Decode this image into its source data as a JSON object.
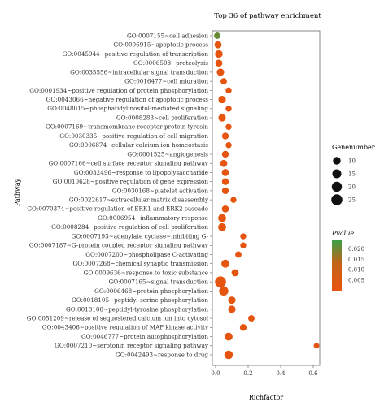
{
  "chart_data": {
    "type": "scatter",
    "title": "Top 36 of pathway enrichment",
    "xlabel": "Richfactor",
    "ylabel": "Pathway",
    "xlim": [
      -0.02,
      0.64
    ],
    "xticks": [
      0.0,
      0.2,
      0.4,
      0.6
    ],
    "xtick_labels": [
      "0.0",
      "0.2",
      "0.4",
      "0.6"
    ],
    "categories": [
      "GO:0007155~cell adhesion",
      "GO:0006915~apoptotic process",
      "GO:0045944~positive regulation of transcription",
      "GO:0006508~proteolysis",
      "GO:0035556~intracellular signal transduction",
      "GO:0016477~cell migration",
      "GO:0001934~positive regulation of protein phosphorylation",
      "GO:0043066~negative regulation of apoptotic process",
      "GO:0048015~phosphatidylinositol-mediated signaling",
      "GO:0008283~cell proliferation",
      "GO:0007169~transmembrane receptor protein tyrosin",
      "GO:0030335~positive regulation of cell migration",
      "GO:0006874~cellular calcium ion homeostasis",
      "GO:0001525~angiogenesis",
      "GO:0007166~cell surface receptor signaling pathway",
      "GO:0032496~response to lipopolysaccharide",
      "GO:0010628~positive regulation of gene expression",
      "GO:0030168~platelet activation",
      "GO:0022617~extracellular matrix disassembly",
      "GO:0070374~positive regulation of ERK1 and ERK2 cascade",
      "GO:0006954~inflammatory response",
      "GO:0008284~positive regulation of cell proliferation",
      "GO:0007193~adenylate cyclase~inhibiting G-",
      "GO:0007187~G-protein coupled receptor signaling pathway",
      "GO:0007200~phospholipase C-activating",
      "GO:0007268~chemical synaptic transmission",
      "GO:0009636~response to toxic substance",
      "GO:0007165~signal transduction",
      "GO:0006468~protein phosphorylation",
      "GO:0018105~peptidyl-serine phosphorylation",
      "GO:0018108~peptidyl-tyrosine phosphorylation",
      "GO:0051209~release of sequestered calcium ion into cytosol",
      "GO:0043406~positive regulation of MAP kinase activity",
      "GO:0046777~protein autophosphorylation",
      "GO:0007210~serotonin receptor signaling pathway",
      "GO:0042493~response to drug"
    ],
    "series": [
      {
        "x": [
          0.01,
          0.015,
          0.02,
          0.02,
          0.03,
          0.05,
          0.08,
          0.04,
          0.08,
          0.04,
          0.08,
          0.06,
          0.08,
          0.06,
          0.05,
          0.06,
          0.06,
          0.06,
          0.11,
          0.06,
          0.04,
          0.04,
          0.17,
          0.17,
          0.14,
          0.06,
          0.12,
          0.03,
          0.05,
          0.1,
          0.1,
          0.22,
          0.17,
          0.08,
          0.62,
          0.08
        ],
        "size": [
          6,
          8,
          10,
          8,
          9,
          6,
          5,
          9,
          5,
          9,
          5,
          7,
          5,
          7,
          8,
          8,
          7,
          7,
          5,
          8,
          11,
          11,
          5,
          5,
          6,
          11,
          8,
          25,
          16,
          9,
          9,
          6,
          7,
          11,
          4,
          13
        ],
        "pvalue": [
          0.02,
          0.001,
          0.001,
          0.001,
          0.001,
          0.001,
          0.001,
          0.001,
          0.001,
          0.001,
          0.001,
          0.001,
          0.001,
          0.001,
          0.001,
          0.001,
          0.001,
          0.001,
          0.001,
          0.001,
          0.001,
          0.001,
          0.001,
          0.001,
          0.001,
          0.001,
          0.001,
          0.001,
          0.001,
          0.001,
          0.001,
          0.001,
          0.001,
          0.001,
          0.001,
          0.001
        ]
      }
    ],
    "size_legend": {
      "title": "Genenumber",
      "values": [
        10,
        15,
        20,
        25
      ],
      "labels": [
        "10",
        "15",
        "20",
        "25"
      ]
    },
    "color_legend": {
      "title": "Pvalue",
      "range": [
        0.0,
        0.024
      ],
      "ticks": [
        0.005,
        0.01,
        0.015,
        0.02
      ],
      "tick_labels": [
        "0.005",
        "0.010",
        "0.015",
        "0.020"
      ],
      "low_color": "#e8540e",
      "high_color": "#3d9e47"
    }
  }
}
